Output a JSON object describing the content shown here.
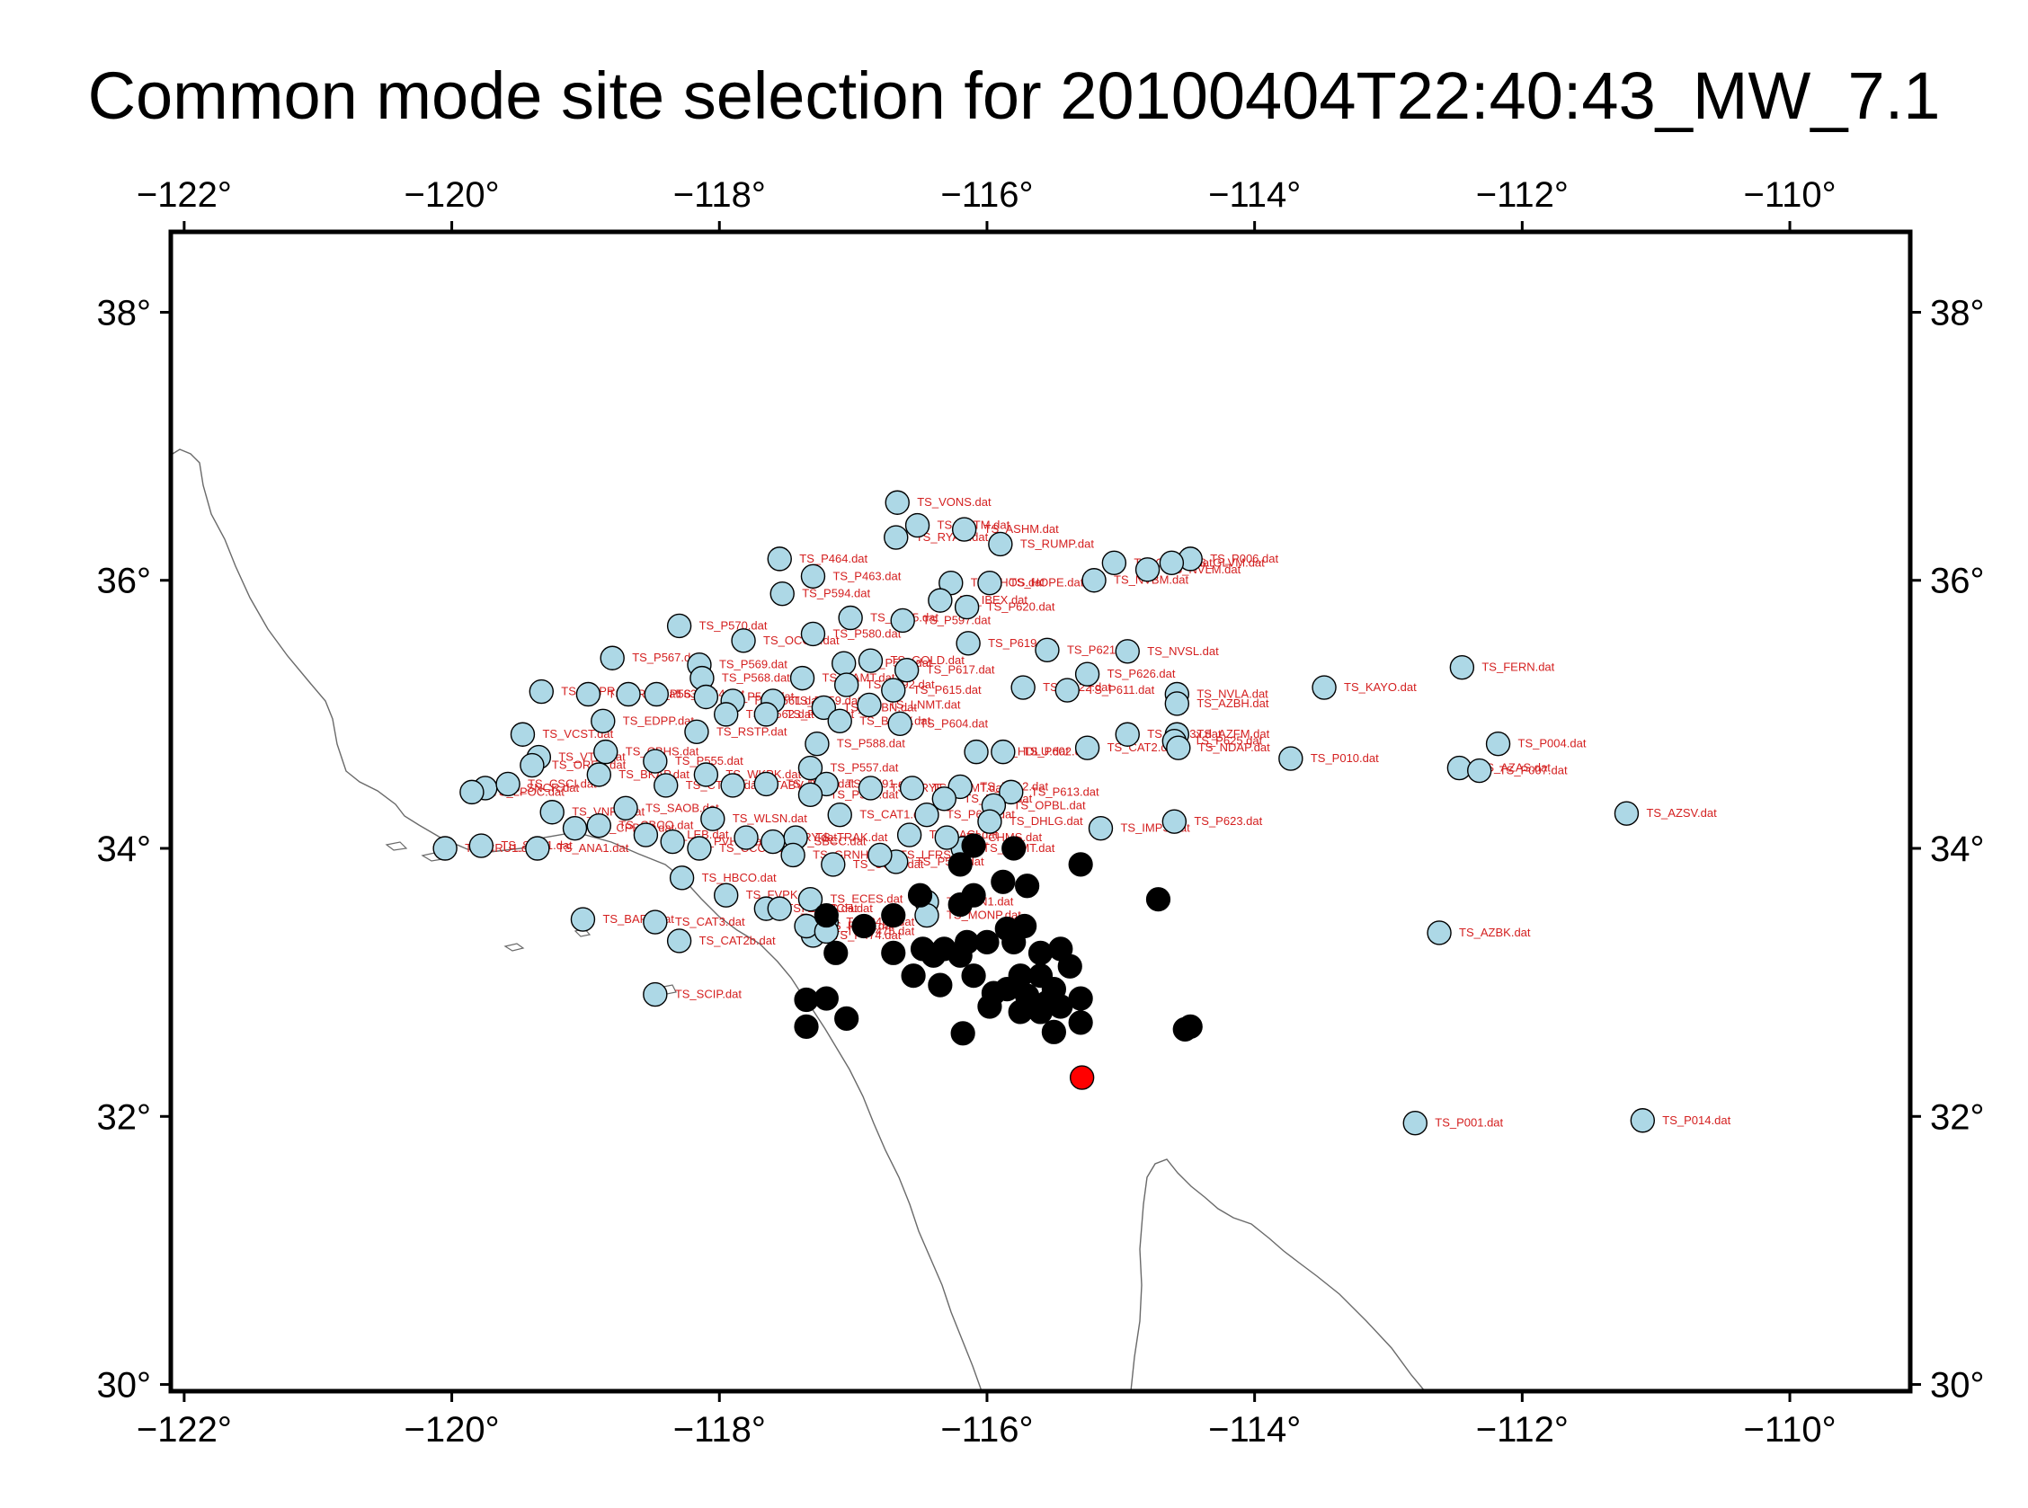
{
  "map": {
    "title": "Common mode site selection for 20100404T22:40:43_MW_7.1",
    "lon_range": [
      -122.1,
      -109.1
    ],
    "lat_range": [
      29.95,
      38.6
    ],
    "x_ticks": [
      {
        "value": -122,
        "label": "−122°"
      },
      {
        "value": -120,
        "label": "−120°"
      },
      {
        "value": -118,
        "label": "−118°"
      },
      {
        "value": -116,
        "label": "−116°"
      },
      {
        "value": -114,
        "label": "−114°"
      },
      {
        "value": -112,
        "label": "−112°"
      },
      {
        "value": -110,
        "label": "−110°"
      }
    ],
    "y_ticks": [
      {
        "value": 30,
        "label": "30°"
      },
      {
        "value": 32,
        "label": "32°"
      },
      {
        "value": 34,
        "label": "34°"
      },
      {
        "value": 36,
        "label": "36°"
      },
      {
        "value": 38,
        "label": "38°"
      }
    ],
    "colors": {
      "selected_site": "#add8e6",
      "excluded_site": "#000000",
      "epicenter": "#ff0000",
      "label": "#d42020",
      "coastline": "#6a6a6a",
      "frame": "#000000"
    },
    "epicenter": {
      "lon": -115.29,
      "lat": 32.29
    },
    "selected_sites": [
      {
        "label": "TS_VONS.dat",
        "lon": -116.67,
        "lat": 36.58
      },
      {
        "label": "TS_BATM.dat",
        "lon": -116.52,
        "lat": 36.41
      },
      {
        "label": "TS_RYAN.dat",
        "lon": -116.68,
        "lat": 36.32
      },
      {
        "label": "TS_ASHM.dat",
        "lon": -116.17,
        "lat": 36.38
      },
      {
        "label": "TS_RUMP.dat",
        "lon": -115.9,
        "lat": 36.27
      },
      {
        "label": "TS_P006.dat",
        "lon": -114.48,
        "lat": 36.16
      },
      {
        "label": "TS_GLVM.dat",
        "lon": -114.62,
        "lat": 36.13
      },
      {
        "label": "TS_NVLM.dat",
        "lon": -114.8,
        "lat": 36.08
      },
      {
        "label": "TS_CNWM.dat",
        "lon": -115.05,
        "lat": 36.13
      },
      {
        "label": "TS_NVBM.dat",
        "lon": -115.2,
        "lat": 36.0
      },
      {
        "label": "TS_P464.dat",
        "lon": -117.55,
        "lat": 36.16
      },
      {
        "label": "TS_P463.dat",
        "lon": -117.3,
        "lat": 36.03
      },
      {
        "label": "TS_SHOS.dat",
        "lon": -116.27,
        "lat": 35.98
      },
      {
        "label": "TS_HOPE.dat",
        "lon": -115.98,
        "lat": 35.98
      },
      {
        "label": "TS_P594.dat",
        "lon": -117.53,
        "lat": 35.9
      },
      {
        "label": "TS_IBEX.dat",
        "lon": -116.35,
        "lat": 35.85
      },
      {
        "label": "TS_P620.dat",
        "lon": -116.15,
        "lat": 35.8
      },
      {
        "label": "TS_P595.dat",
        "lon": -117.02,
        "lat": 35.72
      },
      {
        "label": "TS_P597.dat",
        "lon": -116.63,
        "lat": 35.7
      },
      {
        "label": "TS_P570.dat",
        "lon": -118.3,
        "lat": 35.66
      },
      {
        "label": "TS_P580.dat",
        "lon": -117.3,
        "lat": 35.6
      },
      {
        "label": "TS_OCOC.dat",
        "lon": -117.82,
        "lat": 35.55
      },
      {
        "label": "TS_P619.dat",
        "lon": -116.14,
        "lat": 35.53
      },
      {
        "label": "TS_P621.dat",
        "lon": -115.55,
        "lat": 35.48
      },
      {
        "label": "TS_NVSL.dat",
        "lon": -114.95,
        "lat": 35.47
      },
      {
        "label": "TS_P567.dat",
        "lon": -118.8,
        "lat": 35.42
      },
      {
        "label": "TS_GOLD.dat",
        "lon": -116.87,
        "lat": 35.4
      },
      {
        "label": "TS_P569.dat",
        "lon": -118.15,
        "lat": 35.37
      },
      {
        "label": "TS_P593.dat",
        "lon": -117.07,
        "lat": 35.38
      },
      {
        "label": "TS_P617.dat",
        "lon": -116.6,
        "lat": 35.33
      },
      {
        "label": "TS_P626.dat",
        "lon": -115.25,
        "lat": 35.3
      },
      {
        "label": "TS_RAMT.dat",
        "lon": -117.38,
        "lat": 35.27
      },
      {
        "label": "TS_P568.dat",
        "lon": -118.13,
        "lat": 35.27
      },
      {
        "label": "TS_P592.dat",
        "lon": -117.05,
        "lat": 35.22
      },
      {
        "label": "TS_P622.dat",
        "lon": -115.73,
        "lat": 35.2
      },
      {
        "label": "TS_P611.dat",
        "lon": -115.4,
        "lat": 35.18
      },
      {
        "label": "TS_KAYO.dat",
        "lon": -113.48,
        "lat": 35.2
      },
      {
        "label": "TS_NVLA.dat",
        "lon": -114.58,
        "lat": 35.15
      },
      {
        "label": "TS_AZBH.dat",
        "lon": -114.58,
        "lat": 35.08
      },
      {
        "label": "TS_FERN.dat",
        "lon": -112.45,
        "lat": 35.35
      },
      {
        "label": "TS_P615.dat",
        "lon": -116.7,
        "lat": 35.18
      },
      {
        "label": "TS_BHPR.dat",
        "lon": -119.33,
        "lat": 35.17
      },
      {
        "label": "TS_BRPT.dat",
        "lon": -118.98,
        "lat": 35.15
      },
      {
        "label": "TS_P563.dat",
        "lon": -118.68,
        "lat": 35.15
      },
      {
        "label": "TS_P564.dat",
        "lon": -118.47,
        "lat": 35.15
      },
      {
        "label": "TS_P566.dat",
        "lon": -118.1,
        "lat": 35.13
      },
      {
        "label": "TS_P561.dat",
        "lon": -117.9,
        "lat": 35.1
      },
      {
        "label": "TS_P559.dat",
        "lon": -117.6,
        "lat": 35.1
      },
      {
        "label": "TS_LNMT.dat",
        "lon": -116.88,
        "lat": 35.07
      },
      {
        "label": "TS_CPBN.dat",
        "lon": -117.22,
        "lat": 35.05
      },
      {
        "label": "TS_P562.dat",
        "lon": -117.95,
        "lat": 35.0
      },
      {
        "label": "TS_P583.dat",
        "lon": -117.65,
        "lat": 35.0
      },
      {
        "label": "TS_EDPP.dat",
        "lon": -118.87,
        "lat": 34.95
      },
      {
        "label": "TS_BSRY.dat",
        "lon": -117.1,
        "lat": 34.95
      },
      {
        "label": "TS_P604.dat",
        "lon": -116.65,
        "lat": 34.93
      },
      {
        "label": "TS_RSTP.dat",
        "lon": -118.17,
        "lat": 34.87
      },
      {
        "label": "TS_VCST.dat",
        "lon": -119.47,
        "lat": 34.85
      },
      {
        "label": "TS_P623x.dat",
        "lon": -114.95,
        "lat": 34.85
      },
      {
        "label": "TS_AZFM.dat",
        "lon": -114.58,
        "lat": 34.85
      },
      {
        "label": "TS_P625.dat",
        "lon": -114.6,
        "lat": 34.8
      },
      {
        "label": "TS_NDAP.dat",
        "lon": -114.57,
        "lat": 34.75
      },
      {
        "label": "TS_CAT2.dat",
        "lon": -115.25,
        "lat": 34.75
      },
      {
        "label": "TS_P004.dat",
        "lon": -112.18,
        "lat": 34.78
      },
      {
        "label": "TS_P588.dat",
        "lon": -117.27,
        "lat": 34.78
      },
      {
        "label": "TS_P010.dat",
        "lon": -113.73,
        "lat": 34.67
      },
      {
        "label": "TS_HDLU.dat",
        "lon": -116.08,
        "lat": 34.72
      },
      {
        "label": "TS_P602.dat",
        "lon": -115.88,
        "lat": 34.72
      },
      {
        "label": "TS_P555.dat",
        "lon": -118.48,
        "lat": 34.65
      },
      {
        "label": "TS_CBHS.dat",
        "lon": -118.85,
        "lat": 34.72
      },
      {
        "label": "TS_VTIS.dat",
        "lon": -119.35,
        "lat": 34.68
      },
      {
        "label": "TS_AZAS.dat",
        "lon": -112.47,
        "lat": 34.6
      },
      {
        "label": "TS_P007.dat",
        "lon": -112.32,
        "lat": 34.58
      },
      {
        "label": "TS_WKPK.dat",
        "lon": -118.1,
        "lat": 34.55
      },
      {
        "label": "TS_P557.dat",
        "lon": -117.32,
        "lat": 34.6
      },
      {
        "label": "TS_AZSV.dat",
        "lon": -111.22,
        "lat": 34.26
      },
      {
        "label": "TS_CTDM.dat",
        "lon": -118.4,
        "lat": 34.47
      },
      {
        "label": "TS_TABV.dat",
        "lon": -117.9,
        "lat": 34.47
      },
      {
        "label": "TS_P560.dat",
        "lon": -117.65,
        "lat": 34.48
      },
      {
        "label": "TS_P591.dat",
        "lon": -117.2,
        "lat": 34.48
      },
      {
        "label": "TS_CRYE.dat",
        "lon": -116.87,
        "lat": 34.45
      },
      {
        "label": "TS_RDMT.dat",
        "lon": -116.56,
        "lat": 34.45
      },
      {
        "label": "TS_P612.dat",
        "lon": -116.2,
        "lat": 34.46
      },
      {
        "label": "TS_P613.dat",
        "lon": -115.82,
        "lat": 34.42
      },
      {
        "label": "TS_P596.dat",
        "lon": -117.32,
        "lat": 34.4
      },
      {
        "label": "TS_OPBL.dat",
        "lon": -115.95,
        "lat": 34.32
      },
      {
        "label": "TS_P610.dat",
        "lon": -116.32,
        "lat": 34.37
      },
      {
        "label": "TS_CAT1.dat",
        "lon": -117.1,
        "lat": 34.25
      },
      {
        "label": "TS_P606.dat",
        "lon": -116.45,
        "lat": 34.25
      },
      {
        "label": "TS_DHLG.dat",
        "lon": -115.98,
        "lat": 34.2
      },
      {
        "label": "TS_IMPS.dat",
        "lon": -115.15,
        "lat": 34.15
      },
      {
        "label": "TS_P623.dat",
        "lon": -114.6,
        "lat": 34.2
      },
      {
        "label": "TS_CACI.dat",
        "lon": -116.58,
        "lat": 34.1
      },
      {
        "label": "TS_BEMT.dat",
        "lon": -116.18,
        "lat": 34.0
      },
      {
        "label": "TS_CHMS.dat",
        "lon": -116.3,
        "lat": 34.08
      },
      {
        "label": "TS_P584.dat",
        "lon": -116.68,
        "lat": 33.9
      },
      {
        "label": "TS_LFRS.dat",
        "lon": -116.8,
        "lat": 33.95
      },
      {
        "label": "TS_CSST.dat",
        "lon": -117.15,
        "lat": 33.88
      },
      {
        "label": "TS_HBCO.dat",
        "lon": -118.28,
        "lat": 33.78
      },
      {
        "label": "TS_CCCO.dat",
        "lon": -118.15,
        "lat": 34.0
      },
      {
        "label": "TS_BBRY.dat",
        "lon": -117.8,
        "lat": 34.08
      },
      {
        "label": "TS_PVHS.dat",
        "lon": -118.35,
        "lat": 34.05
      },
      {
        "label": "TS_CBCO.dat",
        "lon": -118.9,
        "lat": 34.17
      },
      {
        "label": "TS_CPBN2.dat",
        "lon": -119.08,
        "lat": 34.15
      },
      {
        "label": "TS_TRAK.dat",
        "lon": -117.43,
        "lat": 34.08
      },
      {
        "label": "TS_SBCC.dat",
        "lon": -117.6,
        "lat": 34.05
      },
      {
        "label": "TS_GRNH.dat",
        "lon": -117.45,
        "lat": 33.95
      },
      {
        "label": "TS_WLSN.dat",
        "lon": -118.05,
        "lat": 34.22
      },
      {
        "label": "TS_VNPS.dat",
        "lon": -119.25,
        "lat": 34.27
      },
      {
        "label": "TS_SNCR.dat",
        "lon": -119.75,
        "lat": 34.45
      },
      {
        "label": "TS_CSCI.dat",
        "lon": -119.58,
        "lat": 34.48
      },
      {
        "label": "TS_LPOC.dat",
        "lon": -119.85,
        "lat": 34.42
      },
      {
        "label": "TS_ORES.dat",
        "lon": -119.4,
        "lat": 34.62
      },
      {
        "label": "TS_BKAP.dat",
        "lon": -118.9,
        "lat": 34.55
      },
      {
        "label": "TS_SAOB.dat",
        "lon": -118.7,
        "lat": 34.3
      },
      {
        "label": "TS_LEB.dat",
        "lon": -118.55,
        "lat": 34.1
      },
      {
        "label": "TS_ELSC.dat",
        "lon": -117.65,
        "lat": 33.55
      },
      {
        "label": "TS_CAT3.dat",
        "lon": -118.48,
        "lat": 33.45
      },
      {
        "label": "TS_BAR1.dat",
        "lon": -119.02,
        "lat": 33.47
      },
      {
        "label": "TS_CAT2b.dat",
        "lon": -118.3,
        "lat": 33.31
      },
      {
        "label": "TS_SCIP.dat",
        "lon": -118.48,
        "lat": 32.91
      },
      {
        "label": "TS_SRS1.dat",
        "lon": -119.78,
        "lat": 34.02
      },
      {
        "label": "TS_ANA1.dat",
        "lon": -119.36,
        "lat": 34.0
      },
      {
        "label": "TS_CRU1.dat",
        "lon": -120.05,
        "lat": 34.0
      },
      {
        "label": "TS_FVPK.dat",
        "lon": -117.95,
        "lat": 33.65
      },
      {
        "label": "TS_ECES.dat",
        "lon": -117.32,
        "lat": 33.62
      },
      {
        "label": "TS_SBCH.dat",
        "lon": -117.55,
        "lat": 33.55
      },
      {
        "label": "TS_P478.dat",
        "lon": -117.2,
        "lat": 33.45
      },
      {
        "label": "TS_P474.dat",
        "lon": -117.3,
        "lat": 33.35
      },
      {
        "label": "TS_P473.dat",
        "lon": -117.35,
        "lat": 33.42
      },
      {
        "label": "TS_P475.dat",
        "lon": -117.2,
        "lat": 33.38
      },
      {
        "label": "TS_PIN1.dat",
        "lon": -116.45,
        "lat": 33.6
      },
      {
        "label": "TS_MONP.dat",
        "lon": -116.45,
        "lat": 33.5
      }
    ],
    "excluded_sites": [
      {
        "lon": -116.1,
        "lat": 34.02
      },
      {
        "lon": -115.8,
        "lat": 34.0
      },
      {
        "lon": -115.3,
        "lat": 33.88
      },
      {
        "lon": -116.2,
        "lat": 33.88
      },
      {
        "lon": -116.5,
        "lat": 33.65
      },
      {
        "lon": -116.2,
        "lat": 33.58
      },
      {
        "lon": -116.1,
        "lat": 33.65
      },
      {
        "lon": -115.88,
        "lat": 33.75
      },
      {
        "lon": -115.7,
        "lat": 33.72
      },
      {
        "lon": -114.72,
        "lat": 33.62
      },
      {
        "lon": -117.2,
        "lat": 33.5
      },
      {
        "lon": -116.7,
        "lat": 33.5
      },
      {
        "lon": -116.92,
        "lat": 33.42
      },
      {
        "lon": -115.85,
        "lat": 33.4
      },
      {
        "lon": -115.72,
        "lat": 33.42
      },
      {
        "lon": -116.48,
        "lat": 33.25
      },
      {
        "lon": -116.32,
        "lat": 33.25
      },
      {
        "lon": -116.15,
        "lat": 33.3
      },
      {
        "lon": -116.0,
        "lat": 33.3
      },
      {
        "lon": -115.8,
        "lat": 33.3
      },
      {
        "lon": -115.6,
        "lat": 33.22
      },
      {
        "lon": -115.45,
        "lat": 33.25
      },
      {
        "lon": -115.38,
        "lat": 33.12
      },
      {
        "lon": -116.2,
        "lat": 33.2
      },
      {
        "lon": -116.4,
        "lat": 33.2
      },
      {
        "lon": -116.7,
        "lat": 33.22
      },
      {
        "lon": -117.13,
        "lat": 33.22
      },
      {
        "lon": -116.55,
        "lat": 33.05
      },
      {
        "lon": -116.35,
        "lat": 32.98
      },
      {
        "lon": -116.1,
        "lat": 33.05
      },
      {
        "lon": -115.95,
        "lat": 32.92
      },
      {
        "lon": -115.85,
        "lat": 32.95
      },
      {
        "lon": -115.75,
        "lat": 33.05
      },
      {
        "lon": -115.6,
        "lat": 33.05
      },
      {
        "lon": -115.5,
        "lat": 32.95
      },
      {
        "lon": -115.55,
        "lat": 32.85
      },
      {
        "lon": -115.7,
        "lat": 32.9
      },
      {
        "lon": -115.45,
        "lat": 32.82
      },
      {
        "lon": -115.3,
        "lat": 32.88
      },
      {
        "lon": -115.6,
        "lat": 32.78
      },
      {
        "lon": -115.75,
        "lat": 32.78
      },
      {
        "lon": -115.98,
        "lat": 32.82
      },
      {
        "lon": -117.35,
        "lat": 32.87
      },
      {
        "lon": -117.2,
        "lat": 32.88
      },
      {
        "lon": -117.35,
        "lat": 32.67
      },
      {
        "lon": -117.05,
        "lat": 32.73
      },
      {
        "lon": -116.18,
        "lat": 32.62
      },
      {
        "lon": -115.5,
        "lat": 32.63
      },
      {
        "lon": -115.3,
        "lat": 32.7
      },
      {
        "lon": -114.52,
        "lat": 32.65
      },
      {
        "lon": -114.48,
        "lat": 32.67
      }
    ],
    "extra_selected_sites": [
      {
        "label": "TS_P001.dat",
        "lon": -112.8,
        "lat": 31.95
      },
      {
        "label": "TS_P014.dat",
        "lon": -111.1,
        "lat": 31.97
      },
      {
        "label": "TS_AZBK.dat",
        "lon": -112.62,
        "lat": 33.37
      }
    ]
  }
}
